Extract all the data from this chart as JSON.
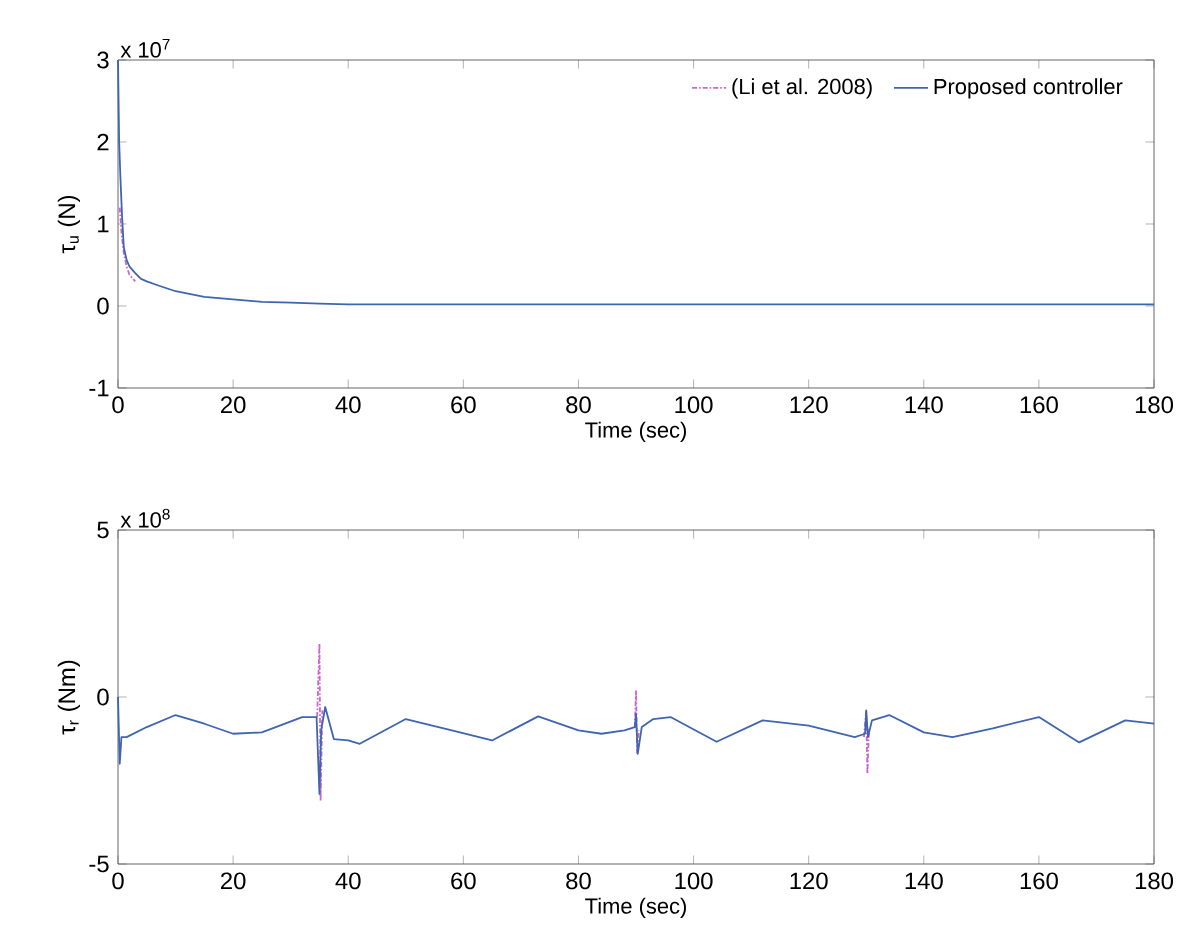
{
  "chart_data": [
    {
      "type": "line",
      "xlabel": "Time (sec)",
      "ylabel": "τ$_{u}$ (N)",
      "annotations": [
        "x 10$^{7}$"
      ],
      "xlim": [
        0,
        180
      ],
      "xticks": [
        0,
        20,
        40,
        60,
        80,
        100,
        120,
        140,
        160,
        180
      ],
      "ylim": [
        -1,
        3
      ],
      "yticks": [
        -1,
        0,
        1,
        2,
        3
      ],
      "legend": "top right",
      "series": [
        {
          "name": "(Li et al. 2008)",
          "color": "#cc66cc",
          "line_style": "dashed",
          "x": [
            0.3,
            0.6,
            1,
            1.5,
            2,
            3
          ],
          "values": [
            1.2,
            0.9,
            0.65,
            0.48,
            0.38,
            0.3
          ]
        },
        {
          "name": "Proposed controller",
          "color": "#3f64b0",
          "line_style": "solid",
          "x": [
            0,
            0.2,
            0.4,
            0.7,
            1,
            1.5,
            2,
            3,
            4,
            5,
            7,
            10,
            15,
            20,
            25,
            30,
            35,
            40,
            60,
            100,
            140,
            180
          ],
          "values": [
            3.0,
            2.0,
            1.6,
            1.1,
            0.72,
            0.56,
            0.48,
            0.4,
            0.33,
            0.3,
            0.25,
            0.18,
            0.11,
            0.08,
            0.05,
            0.04,
            0.03,
            0.02,
            0.02,
            0.02,
            0.02,
            0.02
          ]
        }
      ]
    },
    {
      "type": "line",
      "xlabel": "Time (sec)",
      "ylabel": "τ$_{r}$ (Nm)",
      "annotations": [
        "x 10$^{8}$"
      ],
      "xlim": [
        0,
        180
      ],
      "xticks": [
        0,
        20,
        40,
        60,
        80,
        100,
        120,
        140,
        160,
        180
      ],
      "ylim": [
        -5,
        5
      ],
      "yticks": [
        -5,
        0,
        5
      ],
      "series": [
        {
          "color": "#cc66cc",
          "line_style": "dashed",
          "x": [
            34.6,
            35,
            35.2,
            35.5,
            null,
            89.8,
            90,
            90.2,
            90.5,
            null,
            129.6,
            130,
            130.2,
            130.5
          ],
          "values": [
            -0.6,
            1.6,
            -3.1,
            -0.4,
            null,
            -0.9,
            0.2,
            -1.7,
            -1.0,
            null,
            -1.2,
            -0.4,
            -2.3,
            -0.9
          ]
        },
        {
          "color": "#3f64b0",
          "line_style": "solid",
          "x": [
            0,
            0.3,
            0.6,
            1.5,
            5,
            10,
            15,
            20,
            25,
            32,
            34.5,
            35,
            35.3,
            36,
            37.5,
            40,
            42,
            50,
            58,
            65,
            73,
            80,
            84,
            88,
            89.8,
            90,
            90.3,
            91,
            93,
            96,
            104,
            112,
            120,
            128,
            129.8,
            130,
            130.3,
            131,
            134,
            140,
            145,
            152,
            160,
            167,
            175,
            180
          ],
          "values": [
            0,
            -2.0,
            -1.2,
            -1.2,
            -0.9,
            -0.54,
            -0.8,
            -1.1,
            -1.06,
            -0.6,
            -0.6,
            -2.9,
            -1.0,
            -0.3,
            -1.26,
            -1.3,
            -1.4,
            -0.66,
            -1.0,
            -1.3,
            -0.58,
            -1.0,
            -1.1,
            -1.0,
            -0.9,
            -0.5,
            -1.7,
            -0.9,
            -0.66,
            -0.6,
            -1.34,
            -0.7,
            -0.86,
            -1.2,
            -1.1,
            -0.4,
            -1.2,
            -0.7,
            -0.54,
            -1.06,
            -1.2,
            -0.94,
            -0.6,
            -1.36,
            -0.7,
            -0.8
          ]
        }
      ]
    }
  ]
}
